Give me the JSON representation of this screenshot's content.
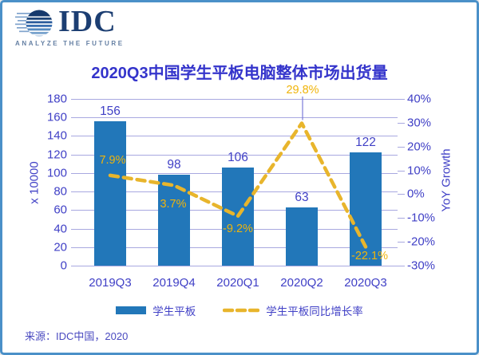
{
  "page": {
    "border_color": "#4A90C8",
    "background": "#FFFFFF"
  },
  "logo": {
    "name": "IDC",
    "tagline": "ANALYZE THE FUTURE"
  },
  "title": "2020Q3中国学生平板电脑整体市场出货量",
  "source": "来源：IDC中国，2020",
  "chart_data": {
    "type": "bar",
    "categories": [
      "2019Q3",
      "2019Q4",
      "2020Q1",
      "2020Q2",
      "2020Q3"
    ],
    "series": [
      {
        "name": "学生平板",
        "type": "bar",
        "axis": "left",
        "values": [
          156,
          98,
          106,
          63,
          122
        ],
        "value_labels": [
          "156",
          "98",
          "106",
          "63",
          "122"
        ]
      },
      {
        "name": "学生平板同比增长率",
        "type": "line",
        "style": "dashed",
        "axis": "right",
        "values": [
          7.9,
          3.7,
          -9.2,
          29.8,
          -22.1
        ],
        "value_labels": [
          "7.9%",
          "3.7%",
          "-9.2%",
          "29.8%",
          "-22.1%"
        ]
      }
    ],
    "left_axis": {
      "title": "x 10000",
      "min": 0,
      "max": 180,
      "step": 20,
      "ticks": [
        "0",
        "20",
        "40",
        "60",
        "80",
        "100",
        "120",
        "140",
        "160",
        "180"
      ]
    },
    "right_axis": {
      "title": "YoY Growth",
      "min": -30,
      "max": 40,
      "step": 10,
      "ticks": [
        "-30%",
        "-20%",
        "-10%",
        "0%",
        "10%",
        "20%",
        "30%",
        "40%"
      ]
    },
    "grid": true,
    "legend_position": "bottom",
    "colors": {
      "bar": "#2277B9",
      "line": "#E8B52C",
      "label_yellow": "#F0B40A",
      "axis_text": "#4040C6",
      "gridline": "#A8A8E0",
      "title": "#3434CB",
      "leader_line": "#7B7BD8"
    }
  },
  "legend": {
    "items": [
      {
        "label": "学生平板",
        "swatch": "bar"
      },
      {
        "label": "学生平板同比增长率",
        "swatch": "dashed-line"
      }
    ]
  }
}
